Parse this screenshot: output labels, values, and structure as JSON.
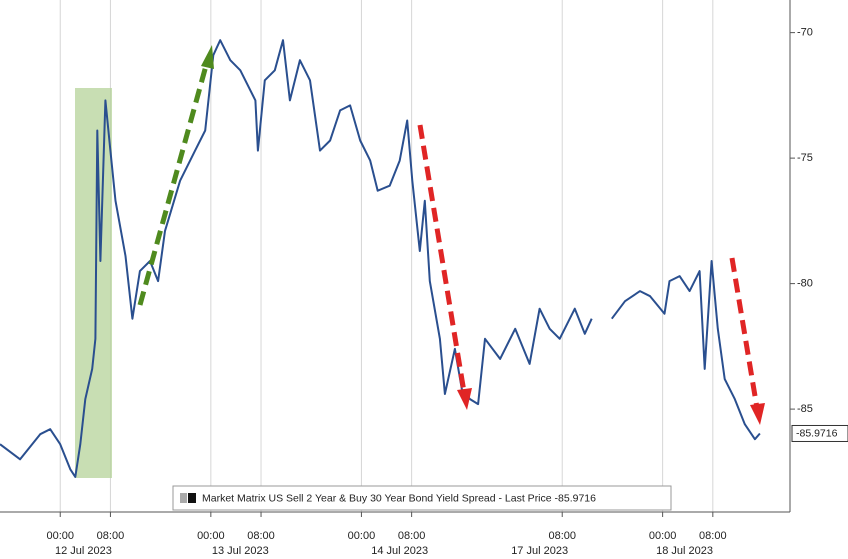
{
  "chart_data": {
    "type": "line",
    "series": [
      {
        "name": "Market Matrix US Sell 2 Year & Buy 30 Year Bond Yield Spread - Last Price -85.9716",
        "color": "#2a4f8f",
        "x": [
          -9.6,
          -6.4,
          -3.2,
          -1.6,
          0,
          1.6,
          2.4,
          3.2,
          4.0,
          5.1,
          5.6,
          5.9,
          6.4,
          7.2,
          8.0,
          8.8,
          10.4,
          11.5,
          12.7,
          14.3,
          15.6,
          16.7,
          19.1,
          21.5,
          23.1,
          24.4,
          25.5,
          27.1,
          28.7,
          31.1,
          31.5,
          32.6,
          34.2,
          35.5,
          36.6,
          38.2,
          39.8,
          41.4,
          43.0,
          44.6,
          46.2,
          47.8,
          49.4,
          50.6,
          52.5,
          54.1,
          55.3,
          56.1,
          57.3,
          58.1,
          58.9,
          60.5,
          61.3,
          62.9,
          64.0,
          65.3,
          66.6,
          67.7,
          70.1,
          72.5,
          74.8,
          76.4,
          78.0,
          79.6,
          82.0,
          83.6,
          84.7,
          86.3,
          87.9,
          90.0,
          92.4,
          94.0,
          96.3,
          97.1,
          98.7,
          100.3,
          101.9,
          102.7,
          103.8,
          104.8,
          105.9,
          107.5,
          109.1,
          110.7,
          111.5
        ],
        "values": [
          -86.4,
          -87.0,
          -86.0,
          -85.8,
          -86.4,
          -87.4,
          -87.7,
          -86.4,
          -84.6,
          -83.4,
          -82.2,
          -73.9,
          -79.1,
          -72.7,
          -74.7,
          -76.7,
          -78.9,
          -81.4,
          -79.5,
          -79.1,
          -79.9,
          -77.9,
          -75.9,
          -74.7,
          -73.9,
          -70.9,
          -70.3,
          -71.1,
          -71.5,
          -72.7,
          -74.7,
          -71.9,
          -71.5,
          -70.3,
          -72.7,
          -71.1,
          -71.9,
          -74.7,
          -74.3,
          -73.1,
          -72.9,
          -74.3,
          -75.1,
          -76.3,
          -76.1,
          -75.1,
          -73.5,
          -75.9,
          -78.7,
          -76.7,
          -79.9,
          -82.2,
          -84.4,
          -82.6,
          -84.2,
          -84.6,
          -84.8,
          -82.2,
          -83.0,
          -81.8,
          -83.2,
          -81.0,
          -81.8,
          -82.2,
          -81.0,
          -82.0,
          -81.4,
          null,
          -81.4,
          -80.7,
          -80.3,
          -80.5,
          -81.2,
          -79.9,
          -79.7,
          -80.3,
          -79.5,
          -83.4,
          -79.1,
          -81.8,
          -83.8,
          -84.6,
          -85.6,
          -86.2,
          -85.9716
        ]
      }
    ],
    "xlim": [
      -9.6,
      116.3
    ],
    "ylim": [
      -89.1,
      -68.7
    ],
    "xticks": [
      {
        "value": 0,
        "label": "00:00"
      },
      {
        "value": 8,
        "label": "08:00"
      },
      {
        "value": 24,
        "label": "00:00"
      },
      {
        "value": 32,
        "label": "08:00"
      },
      {
        "value": 48,
        "label": "00:00"
      },
      {
        "value": 56,
        "label": "08:00"
      },
      {
        "value": 80,
        "label": "08:00"
      },
      {
        "value": 96,
        "label": "00:00"
      },
      {
        "value": 104,
        "label": "08:00"
      }
    ],
    "date_ticks": [
      {
        "value": 3.7,
        "label": "12 Jul 2023"
      },
      {
        "value": 28.7,
        "label": "13 Jul 2023"
      },
      {
        "value": 54.1,
        "label": "14 Jul 2023"
      },
      {
        "value": 76.4,
        "label": "17 Jul 2023"
      },
      {
        "value": 99.5,
        "label": "18 Jul 2023"
      }
    ],
    "yticks": [
      -85,
      -80,
      -75,
      -70
    ],
    "grid": true
  }
}
